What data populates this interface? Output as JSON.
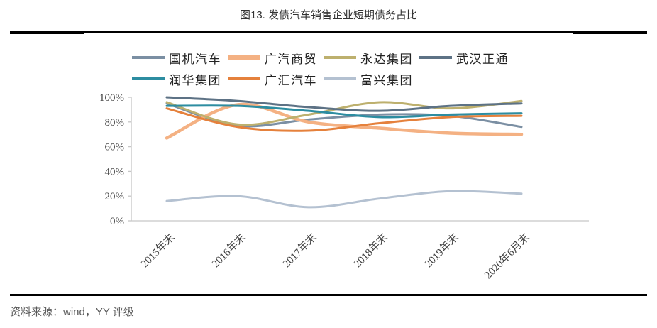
{
  "page": {
    "title": "图13. 发债汽车销售企业短期债务占比",
    "source": "资料来源：wind，YY 评级"
  },
  "chart_data": {
    "type": "line",
    "smoothed": true,
    "title": "图13. 发债汽车销售企业短期债务占比",
    "categories": [
      "2015年末",
      "2016年末",
      "2017年末",
      "2018年末",
      "2019年末",
      "2020年6月末"
    ],
    "series": [
      {
        "name": "国机汽车",
        "color": "#7b8fa3",
        "stroke_width": 3,
        "values": [
          95,
          77,
          82,
          86,
          85,
          76
        ]
      },
      {
        "name": "广汽商贸",
        "color": "#f4b183",
        "stroke_width": 4.5,
        "values": [
          67,
          94,
          80,
          75,
          71,
          70
        ]
      },
      {
        "name": "永达集团",
        "color": "#bdb06e",
        "stroke_width": 3,
        "values": [
          96,
          78,
          86,
          96,
          91,
          97
        ]
      },
      {
        "name": "武汉正通",
        "color": "#5d7285",
        "stroke_width": 3,
        "values": [
          100,
          97,
          92,
          89,
          93,
          95
        ]
      },
      {
        "name": "润华集团",
        "color": "#2d8da1",
        "stroke_width": 3,
        "values": [
          93,
          93,
          89,
          84,
          86,
          87
        ]
      },
      {
        "name": "广汇汽车",
        "color": "#e5813c",
        "stroke_width": 3,
        "values": [
          91,
          76,
          73,
          79,
          84,
          85
        ]
      },
      {
        "name": "富兴集团",
        "color": "#b4c1d1",
        "stroke_width": 3,
        "values": [
          16,
          20,
          11,
          18,
          24,
          22
        ]
      }
    ],
    "ylim": [
      0,
      100
    ],
    "ytick_labels": [
      "100%",
      "80%",
      "60%",
      "40%",
      "20%",
      "0%"
    ],
    "xlabel": "",
    "ylabel": "",
    "grid": false,
    "legend_position": "top",
    "legend_rows": [
      4,
      3
    ],
    "axis_color": "#c6c6c6",
    "tick_text_color": "#404040"
  }
}
